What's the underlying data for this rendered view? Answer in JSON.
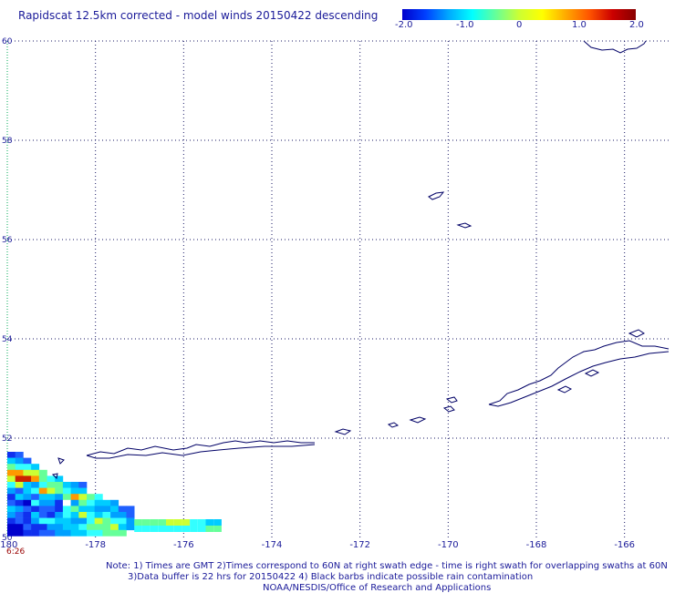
{
  "title": "Rapidscat 12.5km corrected - model winds 20150422 descending",
  "colorbar": {
    "labels": [
      "-2.0",
      "-1.0",
      "0",
      "1.0",
      "2.0"
    ],
    "colors": [
      "#0000cc",
      "#0040ff",
      "#00aaff",
      "#00ffff",
      "#66ff99",
      "#ccff33",
      "#ffff00",
      "#ffaa00",
      "#ff5500",
      "#cc0000",
      "#880000"
    ]
  },
  "map": {
    "lon_range": [
      -180,
      -165
    ],
    "lat_range": [
      50,
      60
    ],
    "lon_ticks": [
      "-180",
      "-178",
      "-176",
      "-174",
      "-172",
      "-170",
      "-168",
      "-166"
    ],
    "lat_ticks": [
      "60",
      "58",
      "56",
      "54",
      "52",
      "50"
    ],
    "time_label": "6:26",
    "gridline_color": "#1a1a66",
    "left_edge_color": "#00aa55",
    "coast_color": "#000066"
  },
  "notes": {
    "line1": "Note: 1) Times are GMT 2)Times correspond to 60N at right swath edge - time is right swath for overlapping swaths at 60N",
    "line2": "3)Data buffer is 22 hrs for 20150422 4) Black barbs indicate possible rain contamination",
    "line3": "NOAA/NESDIS/Office of Research and Applications"
  }
}
